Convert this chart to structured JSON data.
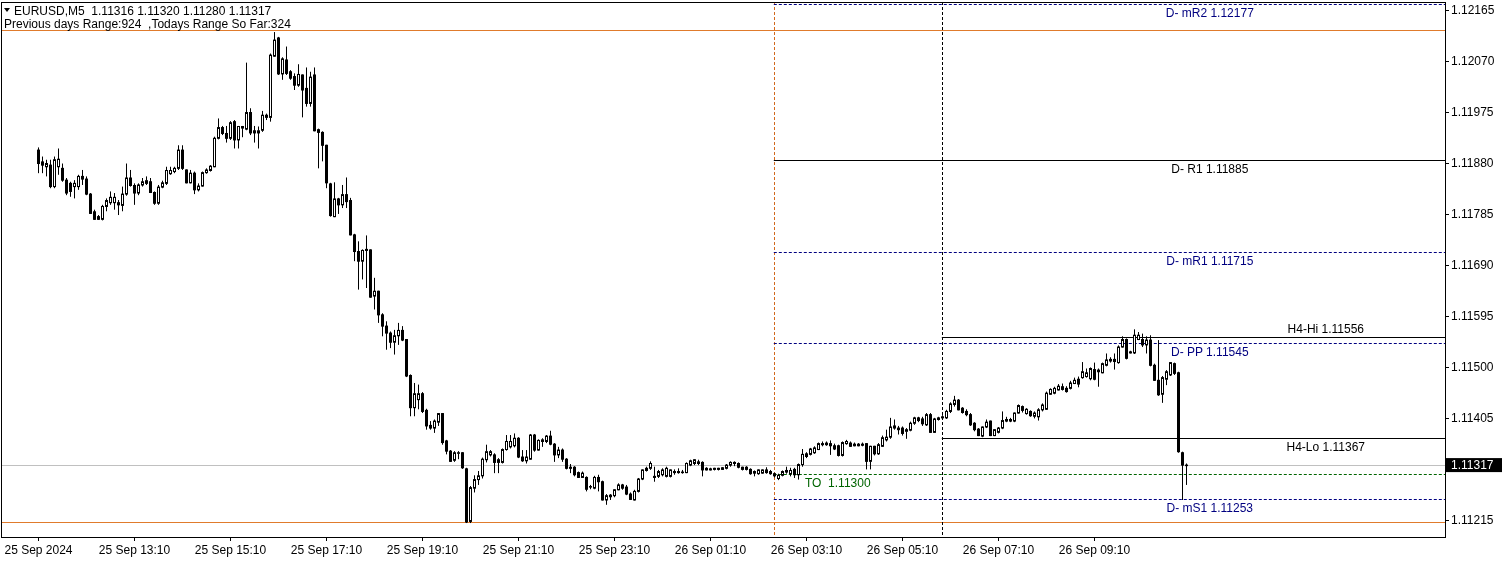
{
  "chart_data": {
    "type": "candlestick",
    "title": "EURUSD,M5  1.11316 1.11320 1.11280 1.11317",
    "color": "#000000",
    "annotations": [
      "Previous days Range:924  ,Todays Range So Far:324",
      {
        "text": "D- mR2 1.12177",
        "x": "2024-09-26T11:35",
        "y": 1.12177
      },
      {
        "text": "D- R1 1.11885",
        "x": "2024-09-26T11:35",
        "y": 1.11885
      },
      {
        "text": "D- mR1 1.11715",
        "x": "2024-09-26T11:35",
        "y": 1.11715
      },
      {
        "text": "H4-Hi 1.11556",
        "x": "2024-09-26T14:00",
        "y": 1.11556
      },
      {
        "text": "D- PP 1.11545",
        "x": "2024-09-26T11:35",
        "y": 1.11545
      },
      {
        "text": "H4-Lo 1.11367",
        "x": "2024-09-26T14:00",
        "y": 1.11367
      },
      {
        "text": "TO  1.11300",
        "x": "2024-09-26T03:50",
        "y": 1.113
      },
      {
        "text": "D- mS1 1.11253",
        "x": "2024-09-26T11:35",
        "y": 1.11253
      }
    ],
    "x": [
      "2024-09-25T11:10",
      "2024-09-25T11:15",
      "2024-09-25T11:20",
      "2024-09-25T11:25",
      "2024-09-25T11:30",
      "2024-09-25T11:35",
      "2024-09-25T11:40",
      "2024-09-25T11:45",
      "2024-09-25T11:50",
      "2024-09-25T11:55",
      "2024-09-25T12:00",
      "2024-09-25T12:05",
      "2024-09-25T12:10",
      "2024-09-25T12:15",
      "2024-09-25T12:20",
      "2024-09-25T12:25",
      "2024-09-25T12:30",
      "2024-09-25T12:35",
      "2024-09-25T12:40",
      "2024-09-25T12:45",
      "2024-09-25T12:50",
      "2024-09-25T12:55",
      "2024-09-25T13:00",
      "2024-09-25T13:05",
      "2024-09-25T13:10",
      "2024-09-25T13:15",
      "2024-09-25T13:20",
      "2024-09-25T13:25",
      "2024-09-25T13:30",
      "2024-09-25T13:35",
      "2024-09-25T13:40",
      "2024-09-25T13:45",
      "2024-09-25T13:50",
      "2024-09-25T13:55",
      "2024-09-25T14:00",
      "2024-09-25T14:05",
      "2024-09-25T14:10",
      "2024-09-25T14:15",
      "2024-09-25T14:20",
      "2024-09-25T14:25",
      "2024-09-25T14:30",
      "2024-09-25T14:35",
      "2024-09-25T14:40",
      "2024-09-25T14:45",
      "2024-09-25T14:50",
      "2024-09-25T14:55",
      "2024-09-25T15:00",
      "2024-09-25T15:05",
      "2024-09-25T15:10",
      "2024-09-25T15:15",
      "2024-09-25T15:20",
      "2024-09-25T15:25",
      "2024-09-25T15:30",
      "2024-09-25T15:35",
      "2024-09-25T15:40",
      "2024-09-25T15:45",
      "2024-09-25T15:50",
      "2024-09-25T15:55",
      "2024-09-25T16:00",
      "2024-09-25T16:05",
      "2024-09-25T16:10",
      "2024-09-25T16:15",
      "2024-09-25T16:20",
      "2024-09-25T16:25",
      "2024-09-25T16:30",
      "2024-09-25T16:35",
      "2024-09-25T16:40",
      "2024-09-25T16:45",
      "2024-09-25T16:50",
      "2024-09-25T16:55",
      "2024-09-25T17:00",
      "2024-09-25T17:05",
      "2024-09-25T17:10",
      "2024-09-25T17:15",
      "2024-09-25T17:20",
      "2024-09-25T17:25",
      "2024-09-25T17:30",
      "2024-09-25T17:35",
      "2024-09-25T17:40",
      "2024-09-25T17:45",
      "2024-09-25T17:50",
      "2024-09-25T17:55",
      "2024-09-25T18:00",
      "2024-09-25T18:05",
      "2024-09-25T18:10",
      "2024-09-25T18:15",
      "2024-09-25T18:20",
      "2024-09-25T18:25",
      "2024-09-25T18:30",
      "2024-09-25T18:35",
      "2024-09-25T18:40",
      "2024-09-25T18:45",
      "2024-09-25T18:50",
      "2024-09-25T18:55",
      "2024-09-25T19:00",
      "2024-09-25T19:05",
      "2024-09-25T19:10",
      "2024-09-25T19:15",
      "2024-09-25T19:20",
      "2024-09-25T19:25",
      "2024-09-25T19:30",
      "2024-09-25T19:35",
      "2024-09-25T19:40",
      "2024-09-25T19:45",
      "2024-09-25T19:50",
      "2024-09-25T19:55",
      "2024-09-25T20:00",
      "2024-09-25T20:05",
      "2024-09-25T20:10",
      "2024-09-25T20:15",
      "2024-09-25T20:20",
      "2024-09-25T20:25",
      "2024-09-25T20:30",
      "2024-09-25T20:35",
      "2024-09-25T20:40",
      "2024-09-25T20:45",
      "2024-09-25T20:50",
      "2024-09-25T20:55",
      "2024-09-25T21:00",
      "2024-09-25T21:05",
      "2024-09-25T21:10",
      "2024-09-25T21:15",
      "2024-09-25T21:20",
      "2024-09-25T21:25",
      "2024-09-25T21:30",
      "2024-09-25T21:35",
      "2024-09-25T21:40",
      "2024-09-25T21:45",
      "2024-09-25T21:50",
      "2024-09-25T21:55",
      "2024-09-25T22:00",
      "2024-09-25T22:05",
      "2024-09-25T22:10",
      "2024-09-25T22:15",
      "2024-09-25T22:20",
      "2024-09-25T22:25",
      "2024-09-25T22:30",
      "2024-09-25T22:35",
      "2024-09-25T22:40",
      "2024-09-25T22:45",
      "2024-09-25T22:50",
      "2024-09-25T22:55",
      "2024-09-25T23:00",
      "2024-09-25T23:05",
      "2024-09-25T23:10",
      "2024-09-25T23:15",
      "2024-09-25T23:20",
      "2024-09-25T23:25",
      "2024-09-25T23:30",
      "2024-09-25T23:35",
      "2024-09-25T23:40",
      "2024-09-25T23:45",
      "2024-09-25T23:50",
      "2024-09-25T23:55",
      "2024-09-26T00:00",
      "2024-09-26T00:05",
      "2024-09-26T00:10",
      "2024-09-26T00:15",
      "2024-09-26T00:20",
      "2024-09-26T00:25",
      "2024-09-26T00:30",
      "2024-09-26T00:35",
      "2024-09-26T00:40",
      "2024-09-26T00:45",
      "2024-09-26T00:50",
      "2024-09-26T00:55",
      "2024-09-26T01:00",
      "2024-09-26T01:05",
      "2024-09-26T01:10",
      "2024-09-26T01:15",
      "2024-09-26T01:20",
      "2024-09-26T01:25",
      "2024-09-26T01:30",
      "2024-09-26T01:35",
      "2024-09-26T01:40",
      "2024-09-26T01:45",
      "2024-09-26T01:50",
      "2024-09-26T01:55",
      "2024-09-26T02:00",
      "2024-09-26T02:05",
      "2024-09-26T02:10",
      "2024-09-26T02:15",
      "2024-09-26T02:20",
      "2024-09-26T02:25",
      "2024-09-26T02:30",
      "2024-09-26T02:35",
      "2024-09-26T02:40",
      "2024-09-26T02:45",
      "2024-09-26T02:50",
      "2024-09-26T02:55",
      "2024-09-26T03:00",
      "2024-09-26T03:05",
      "2024-09-26T03:10",
      "2024-09-26T03:15",
      "2024-09-26T03:20",
      "2024-09-26T03:25",
      "2024-09-26T03:30",
      "2024-09-26T03:35",
      "2024-09-26T03:40",
      "2024-09-26T03:45",
      "2024-09-26T03:50",
      "2024-09-26T03:55",
      "2024-09-26T04:00",
      "2024-09-26T04:05",
      "2024-09-26T04:10",
      "2024-09-26T04:15",
      "2024-09-26T04:20",
      "2024-09-26T04:25",
      "2024-09-26T04:30",
      "2024-09-26T04:35",
      "2024-09-26T04:40",
      "2024-09-26T04:45",
      "2024-09-26T04:50",
      "2024-09-26T04:55",
      "2024-09-26T05:00",
      "2024-09-26T05:05",
      "2024-09-26T05:10",
      "2024-09-26T05:15",
      "2024-09-26T05:20",
      "2024-09-26T05:25",
      "2024-09-26T05:30",
      "2024-09-26T05:35",
      "2024-09-26T05:40",
      "2024-09-26T05:45",
      "2024-09-26T05:50",
      "2024-09-26T05:55",
      "2024-09-26T06:00",
      "2024-09-26T06:05",
      "2024-09-26T06:10",
      "2024-09-26T06:15",
      "2024-09-26T06:20",
      "2024-09-26T06:25",
      "2024-09-26T06:30",
      "2024-09-26T06:35",
      "2024-09-26T06:40",
      "2024-09-26T06:45",
      "2024-09-26T06:50",
      "2024-09-26T06:55",
      "2024-09-26T07:00",
      "2024-09-26T07:05",
      "2024-09-26T07:10",
      "2024-09-26T07:15",
      "2024-09-26T07:20",
      "2024-09-26T07:25",
      "2024-09-26T07:30",
      "2024-09-26T07:35",
      "2024-09-26T07:40",
      "2024-09-26T07:45",
      "2024-09-26T07:50",
      "2024-09-26T07:55",
      "2024-09-26T08:00",
      "2024-09-26T08:05",
      "2024-09-26T08:10",
      "2024-09-26T08:15",
      "2024-09-26T08:20",
      "2024-09-26T08:25",
      "2024-09-26T08:30",
      "2024-09-26T08:35",
      "2024-09-26T08:40",
      "2024-09-26T08:45",
      "2024-09-26T08:50",
      "2024-09-26T08:55",
      "2024-09-26T09:00",
      "2024-09-26T09:05",
      "2024-09-26T09:10",
      "2024-09-26T09:15",
      "2024-09-26T09:20",
      "2024-09-26T09:25",
      "2024-09-26T09:30",
      "2024-09-26T09:35",
      "2024-09-26T09:40",
      "2024-09-26T09:45",
      "2024-09-26T09:50",
      "2024-09-26T09:55",
      "2024-09-26T10:00",
      "2024-09-26T10:05",
      "2024-09-26T10:10",
      "2024-09-26T10:15",
      "2024-09-26T10:20",
      "2024-09-26T10:25",
      "2024-09-26T10:30",
      "2024-09-26T10:35",
      "2024-09-26T10:40",
      "2024-09-26T10:45",
      "2024-09-26T10:50",
      "2024-09-26T10:55",
      "2024-09-26T11:00",
      "2024-09-26T11:05"
    ],
    "ohlc": [
      [
        1.11904,
        1.11909,
        1.11861,
        1.11879
      ],
      [
        1.11882,
        1.11892,
        1.11861,
        1.11876
      ],
      [
        1.11873,
        1.11886,
        1.11855,
        1.11879
      ],
      [
        1.11876,
        1.11886,
        1.11833,
        1.11836
      ],
      [
        1.11836,
        1.11892,
        1.11833,
        1.11886
      ],
      [
        1.11873,
        1.11907,
        1.11858,
        1.11887
      ],
      [
        1.1187,
        1.11879,
        1.11845,
        1.11848
      ],
      [
        1.11848,
        1.11852,
        1.1182,
        1.11824
      ],
      [
        1.11842,
        1.11845,
        1.11817,
        1.11827
      ],
      [
        1.11836,
        1.11848,
        1.11814,
        1.11842
      ],
      [
        1.11836,
        1.11858,
        1.1183,
        1.11855
      ],
      [
        1.11855,
        1.11867,
        1.11839,
        1.1185
      ],
      [
        1.1185,
        1.11855,
        1.1182,
        1.11822
      ],
      [
        1.11822,
        1.11824,
        1.11785,
        1.11786
      ],
      [
        1.11789,
        1.11793,
        1.11774,
        1.11775
      ],
      [
        1.1178,
        1.11783,
        1.11774,
        1.11775
      ],
      [
        1.11775,
        1.11802,
        1.11773,
        1.11799
      ],
      [
        1.11799,
        1.11814,
        1.1179,
        1.1181
      ],
      [
        1.11806,
        1.11827,
        1.11802,
        1.11816
      ],
      [
        1.11806,
        1.11824,
        1.11793,
        1.11816
      ],
      [
        1.11806,
        1.11811,
        1.11783,
        1.11802
      ],
      [
        1.11801,
        1.11836,
        1.1179,
        1.11822
      ],
      [
        1.11822,
        1.11879,
        1.11819,
        1.11852
      ],
      [
        1.11852,
        1.11867,
        1.11836,
        1.11838
      ],
      [
        1.11838,
        1.11842,
        1.11802,
        1.11824
      ],
      [
        1.11824,
        1.11842,
        1.1182,
        1.11839
      ],
      [
        1.11839,
        1.11852,
        1.11836,
        1.11845
      ],
      [
        1.11842,
        1.11855,
        1.11839,
        1.11847
      ],
      [
        1.11845,
        1.11852,
        1.11824,
        1.11825
      ],
      [
        1.11825,
        1.11827,
        1.11802,
        1.11805
      ],
      [
        1.11805,
        1.11839,
        1.11802,
        1.11835
      ],
      [
        1.11835,
        1.11847,
        1.11833,
        1.11843
      ],
      [
        1.11842,
        1.11873,
        1.11839,
        1.11866
      ],
      [
        1.1186,
        1.11873,
        1.11858,
        1.11866
      ],
      [
        1.11864,
        1.11873,
        1.11861,
        1.1187
      ],
      [
        1.1187,
        1.11913,
        1.11867,
        1.11904
      ],
      [
        1.11904,
        1.11913,
        1.11867,
        1.1187
      ],
      [
        1.11867,
        1.11868,
        1.11842,
        1.11843
      ],
      [
        1.11843,
        1.11867,
        1.11842,
        1.11861
      ],
      [
        1.11861,
        1.11864,
        1.11822,
        1.1183
      ],
      [
        1.1183,
        1.11842,
        1.11827,
        1.11837
      ],
      [
        1.11837,
        1.11864,
        1.11836,
        1.11862
      ],
      [
        1.11862,
        1.1187,
        1.1186,
        1.11867
      ],
      [
        1.11866,
        1.11876,
        1.11864,
        1.11874
      ],
      [
        1.11873,
        1.11929,
        1.11872,
        1.11926
      ],
      [
        1.11926,
        1.11963,
        1.11924,
        1.11946
      ],
      [
        1.11946,
        1.11949,
        1.11932,
        1.11935
      ],
      [
        1.11935,
        1.11949,
        1.11918,
        1.11926
      ],
      [
        1.11926,
        1.11958,
        1.11923,
        1.11955
      ],
      [
        1.11957,
        1.1196,
        1.11907,
        1.11923
      ],
      [
        1.11923,
        1.11949,
        1.11907,
        1.11948
      ],
      [
        1.11945,
        1.11949,
        1.11928,
        1.11948
      ],
      [
        1.11943,
        1.12067,
        1.11941,
        1.11974
      ],
      [
        1.11974,
        1.11982,
        1.11932,
        1.11936
      ],
      [
        1.1194,
        1.11949,
        1.11918,
        1.11936
      ],
      [
        1.11936,
        1.11948,
        1.11907,
        1.1194
      ],
      [
        1.11941,
        1.11977,
        1.11938,
        1.11969
      ],
      [
        1.11965,
        1.11972,
        1.1196,
        1.11969
      ],
      [
        1.11965,
        1.12084,
        1.11957,
        1.12081
      ],
      [
        1.12079,
        1.12124,
        1.12078,
        1.12109
      ],
      [
        1.12113,
        1.12115,
        1.12044,
        1.12046
      ],
      [
        1.12046,
        1.12077,
        1.12035,
        1.12074
      ],
      [
        1.12072,
        1.12097,
        1.12044,
        1.12047
      ],
      [
        1.1205,
        1.12053,
        1.12035,
        1.12038
      ],
      [
        1.12041,
        1.12047,
        1.12016,
        1.12025
      ],
      [
        1.12025,
        1.12064,
        1.12022,
        1.12045
      ],
      [
        1.12044,
        1.12045,
        1.11965,
        1.12016
      ],
      [
        1.12019,
        1.12058,
        1.11985,
        1.11991
      ],
      [
        1.11991,
        1.1205,
        1.11985,
        1.1204
      ],
      [
        1.12044,
        1.12058,
        1.11939,
        1.1194
      ],
      [
        1.11942,
        1.11944,
        1.1187,
        1.11937
      ],
      [
        1.11937,
        1.11939,
        1.11883,
        1.11913
      ],
      [
        1.11913,
        1.11914,
        1.11833,
        1.11843
      ],
      [
        1.11841,
        1.11843,
        1.1178,
        1.11782
      ],
      [
        1.1178,
        1.11844,
        1.11779,
        1.11813
      ],
      [
        1.11813,
        1.11815,
        1.11785,
        1.11802
      ],
      [
        1.11802,
        1.11839,
        1.11796,
        1.11821
      ],
      [
        1.11821,
        1.11853,
        1.11796,
        1.11808
      ],
      [
        1.1181,
        1.11815,
        1.11745,
        1.11746
      ],
      [
        1.11746,
        1.11748,
        1.11697,
        1.11715
      ],
      [
        1.11715,
        1.11734,
        1.11644,
        1.11697
      ],
      [
        1.11697,
        1.11719,
        1.11663,
        1.11717
      ],
      [
        1.11717,
        1.11745,
        1.11647,
        1.11719
      ],
      [
        1.11718,
        1.11719,
        1.11629,
        1.1163
      ],
      [
        1.11632,
        1.11666,
        1.11607,
        1.11641
      ],
      [
        1.11641,
        1.11642,
        1.11582,
        1.11597
      ],
      [
        1.11597,
        1.116,
        1.11557,
        1.11576
      ],
      [
        1.11576,
        1.11585,
        1.11532,
        1.11563
      ],
      [
        1.11563,
        1.11566,
        1.11535,
        1.11546
      ],
      [
        1.11546,
        1.11569,
        1.11523,
        1.11558
      ],
      [
        1.11558,
        1.11582,
        1.11541,
        1.11568
      ],
      [
        1.11568,
        1.11576,
        1.11548,
        1.1155
      ],
      [
        1.11551,
        1.11552,
        1.11481,
        1.11483
      ],
      [
        1.11484,
        1.11486,
        1.11408,
        1.11424
      ],
      [
        1.11424,
        1.1147,
        1.11408,
        1.1145
      ],
      [
        1.11439,
        1.11467,
        1.11421,
        1.1145
      ],
      [
        1.1145,
        1.11453,
        1.11414,
        1.11417
      ],
      [
        1.11419,
        1.11422,
        1.11383,
        1.1139
      ],
      [
        1.11391,
        1.11399,
        1.11383,
        1.11386
      ],
      [
        1.11386,
        1.11402,
        1.11377,
        1.11399
      ],
      [
        1.11397,
        1.11414,
        1.1139,
        1.11413
      ],
      [
        1.11413,
        1.11414,
        1.11355,
        1.11359
      ],
      [
        1.11362,
        1.11364,
        1.11337,
        1.11343
      ],
      [
        1.11343,
        1.11345,
        1.11323,
        1.11324
      ],
      [
        1.11326,
        1.11343,
        1.11323,
        1.1134
      ],
      [
        1.11339,
        1.11343,
        1.11328,
        1.1134
      ],
      [
        1.1134,
        1.11341,
        1.1131,
        1.11312
      ],
      [
        1.1131,
        1.11312,
        1.11209,
        1.11211
      ],
      [
        1.11212,
        1.11278,
        1.11209,
        1.11275
      ],
      [
        1.11274,
        1.11298,
        1.11266,
        1.1129
      ],
      [
        1.1129,
        1.11306,
        1.1128,
        1.11297
      ],
      [
        1.11297,
        1.11331,
        1.11292,
        1.11328
      ],
      [
        1.11327,
        1.11355,
        1.11322,
        1.11342
      ],
      [
        1.11336,
        1.11345,
        1.11333,
        1.11342
      ],
      [
        1.11336,
        1.11339,
        1.11302,
        1.11322
      ],
      [
        1.11322,
        1.1133,
        1.11302,
        1.11327
      ],
      [
        1.11322,
        1.11348,
        1.1132,
        1.11346
      ],
      [
        1.11346,
        1.11373,
        1.11344,
        1.11361
      ],
      [
        1.11351,
        1.11373,
        1.11348,
        1.11361
      ],
      [
        1.11353,
        1.11376,
        1.1135,
        1.11367
      ],
      [
        1.11367,
        1.11369,
        1.1133,
        1.11332
      ],
      [
        1.11332,
        1.11345,
        1.11323,
        1.11325
      ],
      [
        1.11325,
        1.11345,
        1.1132,
        1.11332
      ],
      [
        1.11328,
        1.11375,
        1.11327,
        1.11373
      ],
      [
        1.11373,
        1.11375,
        1.11342,
        1.11345
      ],
      [
        1.11345,
        1.11365,
        1.11344,
        1.11363
      ],
      [
        1.11361,
        1.11367,
        1.11351,
        1.11364
      ],
      [
        1.11361,
        1.11373,
        1.11358,
        1.11371
      ],
      [
        1.11371,
        1.11381,
        1.11354,
        1.11356
      ],
      [
        1.11356,
        1.11358,
        1.11323,
        1.11336
      ],
      [
        1.11336,
        1.11351,
        1.1133,
        1.11345
      ],
      [
        1.11345,
        1.11348,
        1.11323,
        1.11328
      ],
      [
        1.11328,
        1.1133,
        1.11309,
        1.11311
      ],
      [
        1.11313,
        1.11319,
        1.11302,
        1.11311
      ],
      [
        1.11313,
        1.11315,
        1.11296,
        1.11299
      ],
      [
        1.11303,
        1.11305,
        1.11293,
        1.11294
      ],
      [
        1.11294,
        1.11305,
        1.11293,
        1.11302
      ],
      [
        1.11294,
        1.11296,
        1.11268,
        1.11272
      ],
      [
        1.11276,
        1.1128,
        1.11272,
        1.11277
      ],
      [
        1.11274,
        1.11297,
        1.11272,
        1.11294
      ],
      [
        1.11294,
        1.11299,
        1.11268,
        1.11286
      ],
      [
        1.11286,
        1.11288,
        1.11251,
        1.11252
      ],
      [
        1.11252,
        1.11263,
        1.11243,
        1.1126
      ],
      [
        1.11258,
        1.11263,
        1.11252,
        1.11261
      ],
      [
        1.1126,
        1.11272,
        1.11257,
        1.11271
      ],
      [
        1.11271,
        1.11283,
        1.1127,
        1.1128
      ],
      [
        1.1128,
        1.11282,
        1.11271,
        1.11274
      ],
      [
        1.11276,
        1.1128,
        1.11261,
        1.11263
      ],
      [
        1.11263,
        1.11266,
        1.11252,
        1.11253
      ],
      [
        1.11252,
        1.11271,
        1.11251,
        1.11268
      ],
      [
        1.11268,
        1.11293,
        1.11266,
        1.11291
      ],
      [
        1.11291,
        1.11309,
        1.11289,
        1.11308
      ],
      [
        1.11307,
        1.11314,
        1.11305,
        1.11311
      ],
      [
        1.11311,
        1.11324,
        1.11308,
        1.1132
      ],
      [
        1.11296,
        1.11314,
        1.11286,
        1.11294
      ],
      [
        1.11296,
        1.11308,
        1.11293,
        1.11305
      ],
      [
        1.11299,
        1.11311,
        1.11296,
        1.11308
      ],
      [
        1.11296,
        1.11314,
        1.11294,
        1.11311
      ],
      [
        1.11296,
        1.11309,
        1.11294,
        1.11308
      ],
      [
        1.11305,
        1.11309,
        1.11299,
        1.11303
      ],
      [
        1.11305,
        1.11311,
        1.11301,
        1.11303
      ],
      [
        1.11304,
        1.11308,
        1.11301,
        1.11303
      ],
      [
        1.11303,
        1.11322,
        1.11302,
        1.1132
      ],
      [
        1.11317,
        1.11327,
        1.11315,
        1.11325
      ],
      [
        1.1132,
        1.11328,
        1.11317,
        1.11327
      ],
      [
        1.11323,
        1.11327,
        1.11317,
        1.1132
      ],
      [
        1.11322,
        1.11324,
        1.11296,
        1.11308
      ],
      [
        1.11311,
        1.11313,
        1.11307,
        1.11308
      ],
      [
        1.1131,
        1.11312,
        1.11307,
        1.11308
      ],
      [
        1.11311,
        1.11312,
        1.11307,
        1.11309
      ],
      [
        1.11311,
        1.11312,
        1.11307,
        1.11309
      ],
      [
        1.11312,
        1.11313,
        1.11308,
        1.11309
      ],
      [
        1.11311,
        1.11319,
        1.11309,
        1.11317
      ],
      [
        1.11317,
        1.11324,
        1.11314,
        1.11322
      ],
      [
        1.1132,
        1.11324,
        1.11315,
        1.11322
      ],
      [
        1.1132,
        1.11322,
        1.11311,
        1.11313
      ],
      [
        1.11313,
        1.11314,
        1.11307,
        1.11309
      ],
      [
        1.11313,
        1.11315,
        1.11307,
        1.11309
      ],
      [
        1.11309,
        1.11311,
        1.11299,
        1.11301
      ],
      [
        1.11305,
        1.11307,
        1.11296,
        1.11302
      ],
      [
        1.11301,
        1.11309,
        1.11299,
        1.11308
      ],
      [
        1.11302,
        1.11309,
        1.11301,
        1.11308
      ],
      [
        1.11308,
        1.11313,
        1.11301,
        1.11303
      ],
      [
        1.11305,
        1.11308,
        1.11299,
        1.11301
      ],
      [
        1.11301,
        1.11303,
        1.11294,
        1.11297
      ],
      [
        1.11292,
        1.11301,
        1.11289,
        1.11298
      ],
      [
        1.11298,
        1.11307,
        1.11296,
        1.11305
      ],
      [
        1.11304,
        1.11314,
        1.11301,
        1.11307
      ],
      [
        1.11301,
        1.11312,
        1.11296,
        1.11307
      ],
      [
        1.11309,
        1.11312,
        1.11293,
        1.11299
      ],
      [
        1.11299,
        1.1132,
        1.1129,
        1.11318
      ],
      [
        1.11318,
        1.11347,
        1.11314,
        1.11337
      ],
      [
        1.11338,
        1.11341,
        1.1133,
        1.11333
      ],
      [
        1.11337,
        1.11349,
        1.11335,
        1.11347
      ],
      [
        1.1134,
        1.11352,
        1.11338,
        1.11349
      ],
      [
        1.11346,
        1.11359,
        1.11345,
        1.11357
      ],
      [
        1.11357,
        1.11361,
        1.11352,
        1.11355
      ],
      [
        1.11355,
        1.11361,
        1.11353,
        1.11358
      ],
      [
        1.11357,
        1.11363,
        1.11336,
        1.11353
      ],
      [
        1.11353,
        1.11357,
        1.11345,
        1.11347
      ],
      [
        1.11353,
        1.11355,
        1.11333,
        1.11335
      ],
      [
        1.11335,
        1.11361,
        1.11333,
        1.11359
      ],
      [
        1.11357,
        1.11364,
        1.11355,
        1.11361
      ],
      [
        1.11358,
        1.11361,
        1.11351,
        1.11352
      ],
      [
        1.11356,
        1.11359,
        1.11352,
        1.11353
      ],
      [
        1.11356,
        1.11358,
        1.11352,
        1.11353
      ],
      [
        1.11356,
        1.11359,
        1.11352,
        1.11354
      ],
      [
        1.11357,
        1.11358,
        1.11309,
        1.11324
      ],
      [
        1.11324,
        1.11353,
        1.11309,
        1.11352
      ],
      [
        1.11352,
        1.11353,
        1.11335,
        1.11338
      ],
      [
        1.11338,
        1.11358,
        1.11336,
        1.11355
      ],
      [
        1.11352,
        1.11372,
        1.11351,
        1.11368
      ],
      [
        1.11364,
        1.11383,
        1.11361,
        1.11369
      ],
      [
        1.11369,
        1.11405,
        1.11366,
        1.11388
      ],
      [
        1.11386,
        1.11402,
        1.11383,
        1.1139
      ],
      [
        1.11386,
        1.1139,
        1.11374,
        1.11383
      ],
      [
        1.11386,
        1.11389,
        1.11372,
        1.11376
      ],
      [
        1.1138,
        1.11386,
        1.11366,
        1.11383
      ],
      [
        1.11382,
        1.11398,
        1.1138,
        1.11395
      ],
      [
        1.11395,
        1.11407,
        1.11392,
        1.11405
      ],
      [
        1.11405,
        1.11407,
        1.11397,
        1.114
      ],
      [
        1.11403,
        1.11407,
        1.1139,
        1.11394
      ],
      [
        1.11392,
        1.11414,
        1.1139,
        1.11411
      ],
      [
        1.11411,
        1.11414,
        1.11377,
        1.11378
      ],
      [
        1.11378,
        1.11405,
        1.11377,
        1.11403
      ],
      [
        1.11402,
        1.11407,
        1.114,
        1.11405
      ],
      [
        1.11405,
        1.1141,
        1.11401,
        1.11407
      ],
      [
        1.11405,
        1.1142,
        1.11403,
        1.11417
      ],
      [
        1.11417,
        1.11434,
        1.11414,
        1.11431
      ],
      [
        1.1143,
        1.11446,
        1.11426,
        1.11438
      ],
      [
        1.11438,
        1.1144,
        1.11419,
        1.1142
      ],
      [
        1.11423,
        1.11425,
        1.11413,
        1.11415
      ],
      [
        1.11417,
        1.11421,
        1.11408,
        1.11411
      ],
      [
        1.11411,
        1.11414,
        1.1139,
        1.11392
      ],
      [
        1.11395,
        1.11397,
        1.1138,
        1.11383
      ],
      [
        1.11384,
        1.11386,
        1.11371,
        1.11372
      ],
      [
        1.11371,
        1.11389,
        1.11369,
        1.11388
      ],
      [
        1.11388,
        1.11402,
        1.11386,
        1.11397
      ],
      [
        1.11399,
        1.114,
        1.11371,
        1.11372
      ],
      [
        1.11372,
        1.11384,
        1.11371,
        1.11383
      ],
      [
        1.11378,
        1.11388,
        1.11376,
        1.11386
      ],
      [
        1.11386,
        1.11417,
        1.11384,
        1.114
      ],
      [
        1.11399,
        1.11407,
        1.11397,
        1.11402
      ],
      [
        1.11402,
        1.11405,
        1.11397,
        1.11399
      ],
      [
        1.11399,
        1.11415,
        1.11397,
        1.11414
      ],
      [
        1.11414,
        1.1143,
        1.11413,
        1.11428
      ],
      [
        1.11426,
        1.11428,
        1.11415,
        1.11419
      ],
      [
        1.11413,
        1.11423,
        1.11411,
        1.11421
      ],
      [
        1.11417,
        1.11419,
        1.11407,
        1.11409
      ],
      [
        1.11408,
        1.11417,
        1.11404,
        1.11414
      ],
      [
        1.11407,
        1.11423,
        1.114,
        1.1142
      ],
      [
        1.1142,
        1.11432,
        1.11417,
        1.11429
      ],
      [
        1.11421,
        1.11454,
        1.1142,
        1.11451
      ],
      [
        1.11449,
        1.1146,
        1.11448,
        1.11458
      ],
      [
        1.11451,
        1.11463,
        1.11449,
        1.1146
      ],
      [
        1.11457,
        1.11468,
        1.11456,
        1.11464
      ],
      [
        1.11463,
        1.11469,
        1.11456,
        1.11458
      ],
      [
        1.1146,
        1.11464,
        1.11452,
        1.11454
      ],
      [
        1.1146,
        1.11474,
        1.11458,
        1.1147
      ],
      [
        1.11469,
        1.1148,
        1.11468,
        1.11475
      ],
      [
        1.11477,
        1.11482,
        1.11462,
        1.11468
      ],
      [
        1.1148,
        1.11509,
        1.11478,
        1.11491
      ],
      [
        1.11482,
        1.11497,
        1.1148,
        1.11489
      ],
      [
        1.11478,
        1.11499,
        1.11475,
        1.11497
      ],
      [
        1.11495,
        1.11508,
        1.11475,
        1.11477
      ],
      [
        1.11491,
        1.11497,
        1.11463,
        1.11494
      ],
      [
        1.11489,
        1.11508,
        1.11488,
        1.11506
      ],
      [
        1.11503,
        1.11525,
        1.11501,
        1.11513
      ],
      [
        1.11514,
        1.11518,
        1.11508,
        1.11511
      ],
      [
        1.11514,
        1.11525,
        1.11495,
        1.1151
      ],
      [
        1.11508,
        1.1154,
        1.11506,
        1.11537
      ],
      [
        1.11537,
        1.11557,
        1.11536,
        1.11551
      ],
      [
        1.11551,
        1.11553,
        1.11514,
        1.11516
      ],
      [
        1.11528,
        1.1153,
        1.11525,
        1.11526
      ],
      [
        1.11526,
        1.1157,
        1.11524,
        1.11559
      ],
      [
        1.11551,
        1.11565,
        1.1155,
        1.11559
      ],
      [
        1.11551,
        1.11562,
        1.11537,
        1.11541
      ],
      [
        1.11541,
        1.11557,
        1.11525,
        1.1155
      ],
      [
        1.1155,
        1.11559,
        1.11501,
        1.11503
      ],
      [
        1.11503,
        1.11506,
        1.11474,
        1.11475
      ],
      [
        1.11475,
        1.1155,
        1.11446,
        1.11448
      ],
      [
        1.11449,
        1.11483,
        1.11433,
        1.1148
      ],
      [
        1.11477,
        1.11494,
        1.11466,
        1.11491
      ],
      [
        1.11485,
        1.11509,
        1.11483,
        1.11508
      ],
      [
        1.11506,
        1.11508,
        1.11485,
        1.11488
      ],
      [
        1.11489,
        1.11491,
        1.1134,
        1.11342
      ],
      [
        1.1134,
        1.11342,
        1.11252,
        1.11317
      ],
      [
        1.11316,
        1.1132,
        1.1128,
        1.11317
      ]
    ],
    "series": [
      {
        "type": "line",
        "x": [
          "2024-09-26T02:30",
          "2024-09-26T16:29"
        ],
        "values": [
          1.12177,
          1.12177
        ],
        "color": "#000080",
        "line_style": "dashed"
      },
      {
        "type": "line",
        "x": [
          "2024-09-26T02:30",
          "2024-09-26T16:29"
        ],
        "values": [
          1.11885,
          1.11885
        ],
        "color": "#000000"
      },
      {
        "type": "line",
        "x": [
          "2024-09-26T02:30",
          "2024-09-26T16:29"
        ],
        "values": [
          1.11715,
          1.11715
        ],
        "color": "#000080",
        "line_style": "dashed"
      },
      {
        "type": "line",
        "x": [
          "2024-09-26T06:00",
          "2024-09-26T16:29"
        ],
        "values": [
          1.11556,
          1.11556
        ],
        "color": "#000000"
      },
      {
        "type": "line",
        "x": [
          "2024-09-26T02:30",
          "2024-09-26T16:29"
        ],
        "values": [
          1.11545,
          1.11545
        ],
        "color": "#000080",
        "line_style": "dashed"
      },
      {
        "type": "line",
        "x": [
          "2024-09-26T06:00",
          "2024-09-26T16:29"
        ],
        "values": [
          1.11367,
          1.11367
        ],
        "color": "#000000"
      },
      {
        "type": "line",
        "x": [
          "2024-09-26T02:30",
          "2024-09-26T16:29"
        ],
        "values": [
          1.113,
          1.113
        ],
        "color": "#006400",
        "line_style": "dashed"
      },
      {
        "type": "line",
        "x": [
          "2024-09-26T02:30",
          "2024-09-26T16:29"
        ],
        "values": [
          1.11253,
          1.11253
        ],
        "color": "#000080",
        "line_style": "dashed"
      }
    ],
    "ref_lines": [
      {
        "axis": "y",
        "value": 1.12128,
        "color": "#e07b2c"
      },
      {
        "axis": "y",
        "value": 1.11211,
        "color": "#e07b2c"
      },
      {
        "axis": "y",
        "value": 1.11317,
        "label": "1.11317",
        "color": "#c0c0c0"
      },
      {
        "axis": "x",
        "value": "2024-09-26T02:30",
        "color": "#d2691e",
        "line_style": "dashed"
      },
      {
        "axis": "x",
        "value": "2024-09-26T06:00",
        "color": "#000000",
        "line_style": "dashed"
      }
    ],
    "xlim": [
      "2024-09-25T10:24",
      "2024-09-26T16:29"
    ],
    "xticks": [
      {
        "value": "2024-09-25T11:10",
        "label": "25 Sep 2024"
      },
      {
        "value": "2024-09-25T13:10",
        "label": "25 Sep 13:10"
      },
      {
        "value": "2024-09-25T15:10",
        "label": "25 Sep 15:10"
      },
      {
        "value": "2024-09-25T17:10",
        "label": "25 Sep 17:10"
      },
      {
        "value": "2024-09-25T19:10",
        "label": "25 Sep 19:10"
      },
      {
        "value": "2024-09-25T21:10",
        "label": "25 Sep 21:10"
      },
      {
        "value": "2024-09-25T23:10",
        "label": "25 Sep 23:10"
      },
      {
        "value": "2024-09-26T01:10",
        "label": "26 Sep 01:10"
      },
      {
        "value": "2024-09-26T03:10",
        "label": "26 Sep 03:10"
      },
      {
        "value": "2024-09-26T05:10",
        "label": "26 Sep 05:10"
      },
      {
        "value": "2024-09-26T07:10",
        "label": "26 Sep 07:10"
      },
      {
        "value": "2024-09-26T09:10",
        "label": "26 Sep 09:10"
      }
    ],
    "ylim": [
      1.11183,
      1.1218
    ],
    "yticks": [
      1.12165,
      {
        "value": 1.1207,
        "label": "1.12070"
      },
      1.11975,
      {
        "value": 1.1188,
        "label": "1.11880"
      },
      1.11785,
      {
        "value": 1.1169,
        "label": "1.11690"
      },
      1.11595,
      {
        "value": 1.115,
        "label": "1.11500"
      },
      1.11405,
      1.11215
    ]
  }
}
